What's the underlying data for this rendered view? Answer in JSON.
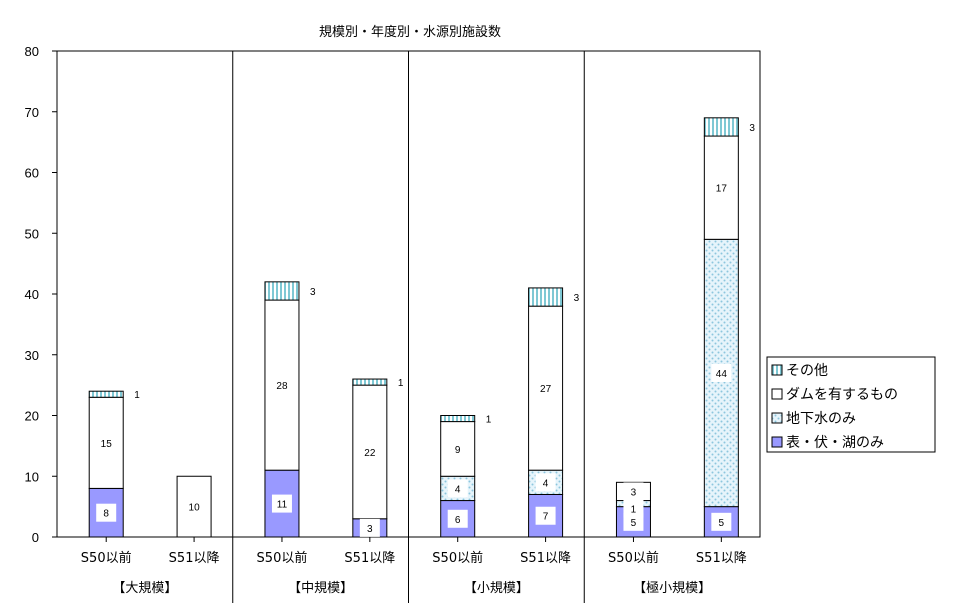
{
  "chart_data": {
    "type": "bar",
    "stacked": true,
    "title": "規模別・年度別・水源別施設数",
    "ylim": [
      0,
      80
    ],
    "yticks": [
      0,
      10,
      20,
      30,
      40,
      50,
      60,
      70,
      80
    ],
    "grid": false,
    "legend_position": "right",
    "groups": [
      {
        "label": "【大規模】",
        "bars": [
          {
            "category": "S50以前",
            "values": [
              8,
              0,
              15,
              1
            ]
          },
          {
            "category": "S51以降",
            "values": [
              0,
              0,
              10,
              0
            ]
          }
        ]
      },
      {
        "label": "【中規模】",
        "bars": [
          {
            "category": "S50以前",
            "values": [
              11,
              0,
              28,
              3
            ]
          },
          {
            "category": "S51以降",
            "values": [
              3,
              0,
              22,
              1
            ]
          }
        ]
      },
      {
        "label": "【小規模】",
        "bars": [
          {
            "category": "S50以前",
            "values": [
              6,
              4,
              9,
              1
            ]
          },
          {
            "category": "S51以降",
            "values": [
              7,
              4,
              27,
              3
            ]
          }
        ]
      },
      {
        "label": "【極小規模】",
        "bars": [
          {
            "category": "S50以前",
            "values": [
              5,
              1,
              3,
              0
            ]
          },
          {
            "category": "S51以降",
            "values": [
              5,
              44,
              17,
              3
            ]
          }
        ]
      }
    ],
    "series": [
      {
        "name": "表・伏・湖のみ",
        "color": "#9999ff",
        "pattern": "solid"
      },
      {
        "name": "地下水のみ",
        "color": "#cce8f4",
        "pattern": "dots"
      },
      {
        "name": "ダムを有するもの",
        "color": "#ffffff",
        "pattern": "solid"
      },
      {
        "name": "その他",
        "color": "#a6dde6",
        "pattern": "vertical-lines"
      }
    ],
    "legend_order": [
      "その他",
      "ダムを有するもの",
      "地下水のみ",
      "表・伏・湖のみ"
    ]
  }
}
